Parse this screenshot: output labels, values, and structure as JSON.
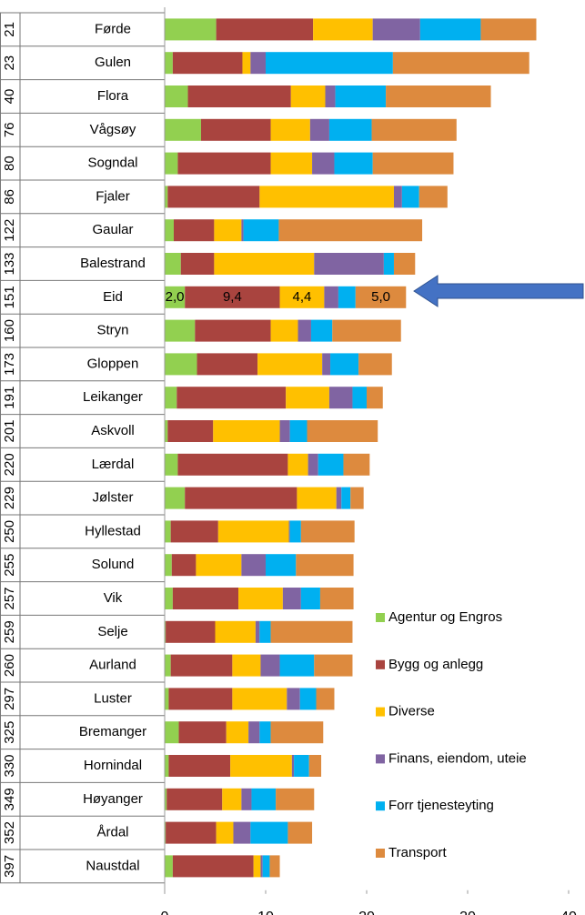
{
  "chart_data": {
    "type": "stacked-barh",
    "ranks": [
      "21",
      "23",
      "40",
      "76",
      "80",
      "86",
      "122",
      "133",
      "151",
      "160",
      "173",
      "191",
      "201",
      "220",
      "229",
      "250",
      "255",
      "257",
      "259",
      "260",
      "297",
      "325",
      "330",
      "349",
      "352",
      "397"
    ],
    "categories": [
      "Førde",
      "Gulen",
      "Flora",
      "Vågsøy",
      "Sogndal",
      "Fjaler",
      "Gaular",
      "Balestrand",
      "Eid",
      "Stryn",
      "Gloppen",
      "Leikanger",
      "Askvoll",
      "Lærdal",
      "Jølster",
      "Hyllestad",
      "Solund",
      "Vik",
      "Selje",
      "Aurland",
      "Luster",
      "Bremanger",
      "Hornindal",
      "Høyanger",
      "Årdal",
      "Naustdal"
    ],
    "series": [
      {
        "name": "Agentur og Engros",
        "color": "#92d050",
        "values": [
          5.1,
          0.8,
          2.3,
          3.6,
          1.3,
          0.3,
          0.9,
          1.6,
          2.0,
          3.0,
          3.2,
          1.2,
          0.3,
          1.3,
          2.0,
          0.6,
          0.7,
          0.8,
          0.1,
          0.6,
          0.4,
          1.4,
          0.4,
          0.2,
          0.1,
          0.8
        ],
        "value_labels": [
          null,
          null,
          null,
          null,
          null,
          null,
          null,
          null,
          "2,0",
          null,
          null,
          null,
          null,
          null,
          null,
          null,
          null,
          null,
          null,
          null,
          null,
          null,
          null,
          null,
          null,
          null
        ]
      },
      {
        "name": "Bygg og anlegg",
        "color": "#a9443f",
        "values": [
          9.6,
          6.9,
          10.2,
          6.9,
          9.2,
          9.1,
          4.0,
          3.3,
          9.4,
          7.5,
          6.0,
          10.8,
          4.5,
          10.9,
          11.1,
          4.7,
          2.4,
          6.5,
          4.9,
          6.1,
          6.3,
          4.7,
          6.1,
          5.5,
          5.0,
          8.0
        ],
        "value_labels": [
          null,
          null,
          null,
          null,
          null,
          null,
          null,
          null,
          "9,4",
          null,
          null,
          null,
          null,
          null,
          null,
          null,
          null,
          null,
          null,
          null,
          null,
          null,
          null,
          null,
          null,
          null
        ]
      },
      {
        "name": "Diverse",
        "color": "#ffc000",
        "values": [
          5.9,
          0.8,
          3.4,
          3.9,
          4.1,
          13.3,
          2.7,
          9.9,
          4.4,
          2.7,
          6.4,
          4.3,
          6.6,
          2.0,
          3.9,
          7.0,
          4.5,
          4.4,
          4.0,
          2.8,
          5.4,
          2.2,
          6.1,
          1.9,
          1.7,
          0.7
        ],
        "value_labels": [
          null,
          null,
          null,
          null,
          null,
          null,
          null,
          null,
          "4,4",
          null,
          null,
          null,
          null,
          null,
          null,
          null,
          null,
          null,
          null,
          null,
          null,
          null,
          null,
          null,
          null,
          null
        ]
      },
      {
        "name": "Finans, eiendom, uteie",
        "color": "#8064a2",
        "values": [
          4.7,
          1.5,
          1.0,
          1.9,
          2.2,
          0.8,
          0.2,
          6.9,
          1.4,
          1.3,
          0.8,
          2.3,
          1.0,
          1.0,
          0.5,
          0.1,
          2.4,
          1.8,
          0.4,
          1.9,
          1.3,
          1.1,
          0.2,
          1.0,
          1.7,
          0.2
        ]
      },
      {
        "name": "Forr tjenesteyting",
        "color": "#00b0f0",
        "values": [
          6.0,
          12.6,
          5.0,
          4.2,
          3.8,
          1.7,
          3.5,
          1.0,
          1.7,
          2.1,
          2.8,
          1.4,
          1.7,
          2.5,
          0.9,
          1.1,
          3.0,
          1.9,
          1.1,
          3.4,
          1.6,
          1.1,
          1.5,
          2.4,
          3.7,
          0.7
        ]
      },
      {
        "name": "Transport",
        "color": "#dd8a3e",
        "values": [
          5.5,
          13.5,
          10.4,
          8.4,
          8.0,
          2.8,
          14.2,
          2.1,
          5.0,
          6.8,
          3.3,
          1.6,
          7.0,
          2.6,
          1.3,
          5.3,
          5.7,
          3.3,
          8.1,
          3.8,
          1.8,
          5.2,
          1.2,
          3.8,
          2.4,
          1.0
        ],
        "value_labels": [
          null,
          null,
          null,
          null,
          null,
          null,
          null,
          null,
          "5,0",
          null,
          null,
          null,
          null,
          null,
          null,
          null,
          null,
          null,
          null,
          null,
          null,
          null,
          null,
          null,
          null,
          null
        ]
      }
    ],
    "xlim": [
      0,
      40
    ],
    "xticks": [
      0,
      10,
      20,
      30,
      40
    ]
  }
}
